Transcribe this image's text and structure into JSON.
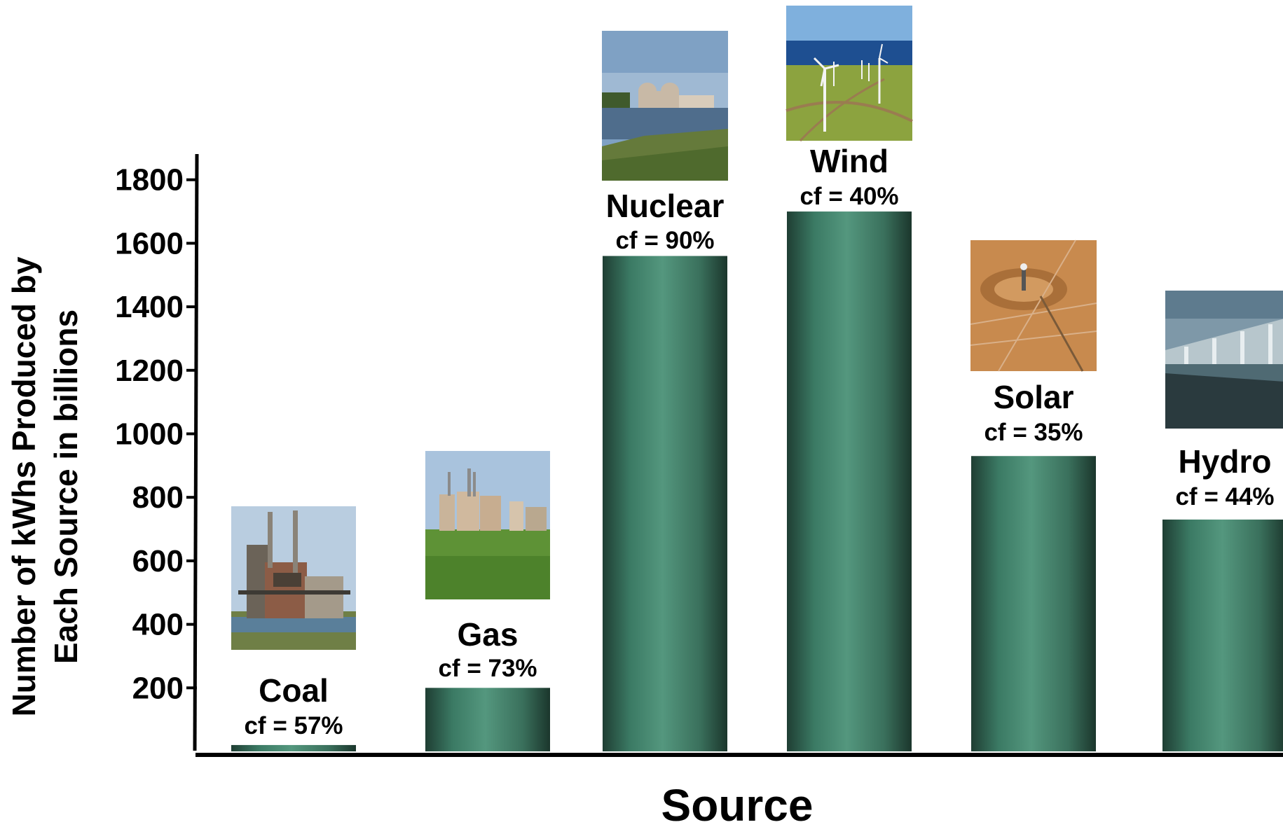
{
  "chart_data": {
    "type": "bar",
    "categories": [
      "Coal",
      "Gas",
      "Nuclear",
      "Wind",
      "Solar",
      "Hydro"
    ],
    "values": [
      20,
      200,
      1560,
      1700,
      930,
      730
    ],
    "bar_annotations": [
      "cf = 57%",
      "cf = 73%",
      "cf = 90%",
      "cf = 40%",
      "cf = 35%",
      "cf = 44%"
    ],
    "bar_images": [
      "coal-power-plant",
      "gas-power-plant",
      "nuclear-power-plant",
      "wind-farm",
      "solar-tower-plant",
      "hydro-dam"
    ],
    "xlabel": "Source",
    "ylabel_lines": [
      "Number of kWhs Produced by",
      "Each Source in billions"
    ],
    "yticks": [
      200,
      400,
      600,
      800,
      1000,
      1200,
      1400,
      1600,
      1800
    ],
    "ylim": [
      0,
      1900
    ],
    "grid": false,
    "legend": "none",
    "bar_color": "#4a8f78"
  }
}
